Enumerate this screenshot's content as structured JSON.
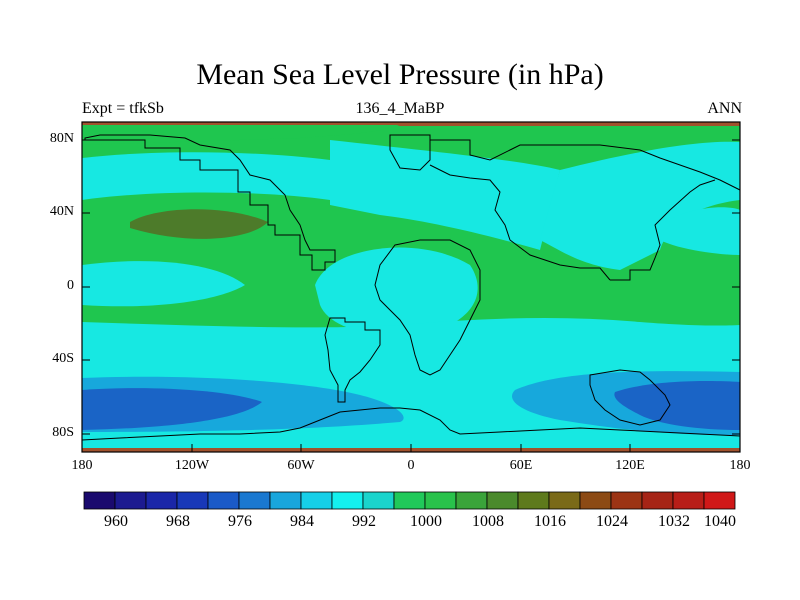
{
  "title": "Mean Sea Level Pressure (in hPa)",
  "subtitle_left": "Expt = tfkSb",
  "subtitle_center": "136_4_MaBP",
  "subtitle_right": "ANN",
  "lat_labels": [
    "80N",
    "40N",
    "0",
    "40S",
    "80S"
  ],
  "lon_labels": [
    "180",
    "120W",
    "60W",
    "0",
    "60E",
    "120E",
    "180"
  ],
  "colorbar_labels": [
    "960",
    "968",
    "976",
    "984",
    "992",
    "1000",
    "1008",
    "1016",
    "1024",
    "1032",
    "1040"
  ],
  "palette": [
    "#1a0a6e",
    "#1c1a90",
    "#1a26a8",
    "#1838b8",
    "#1a5ac8",
    "#1a78d0",
    "#19a6dc",
    "#16cfe8",
    "#14f0ee",
    "#1ad4cc",
    "#20c95a",
    "#29c24b",
    "#3aa43a",
    "#4a8a2c",
    "#5e7a1c",
    "#7a6a18",
    "#8c4a14",
    "#9c3414",
    "#a62416",
    "#b81e18",
    "#d01818"
  ],
  "colors": {
    "land_border": "#000000",
    "region_1000": "#17e8e2",
    "region_1008": "#1fc64f",
    "region_1016": "#4d7b2a",
    "region_992": "#17a8dc",
    "region_984": "#1a64c6",
    "frame_band": "#a0522d"
  }
}
